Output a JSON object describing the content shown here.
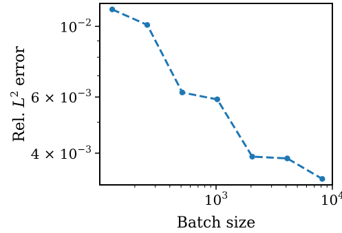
{
  "chart_data": {
    "type": "line",
    "xlabel": "Batch size",
    "ylabel": {
      "prefix": "Rel. ",
      "variable": "L",
      "exponent": "2",
      "suffix": " error"
    },
    "xscale": "log",
    "yscale": "log",
    "xlim": [
      100,
      10000
    ],
    "ylim": [
      0.00318,
      0.0118
    ],
    "x_ticks": [
      {
        "value": 1000,
        "base": "10",
        "exponent": "3"
      },
      {
        "value": 10000,
        "base": "10",
        "exponent": "4"
      }
    ],
    "y_ticks": [
      {
        "value": 0.004,
        "mantissa": "4 × 10",
        "exponent": "−3"
      },
      {
        "value": 0.006,
        "mantissa": "6 × 10",
        "exponent": "−3"
      },
      {
        "value": 0.01,
        "mantissa": "10",
        "exponent": "−2"
      }
    ],
    "grid": false,
    "series": [
      {
        "color": "#1f77b4",
        "line_style": "dashed",
        "marker": "circle",
        "x": [
          128,
          256,
          512,
          1024,
          2048,
          4096,
          8192
        ],
        "y": [
          0.0113,
          0.0101,
          0.0062,
          0.0059,
          0.0039,
          0.00385,
          0.00332
        ]
      }
    ]
  }
}
